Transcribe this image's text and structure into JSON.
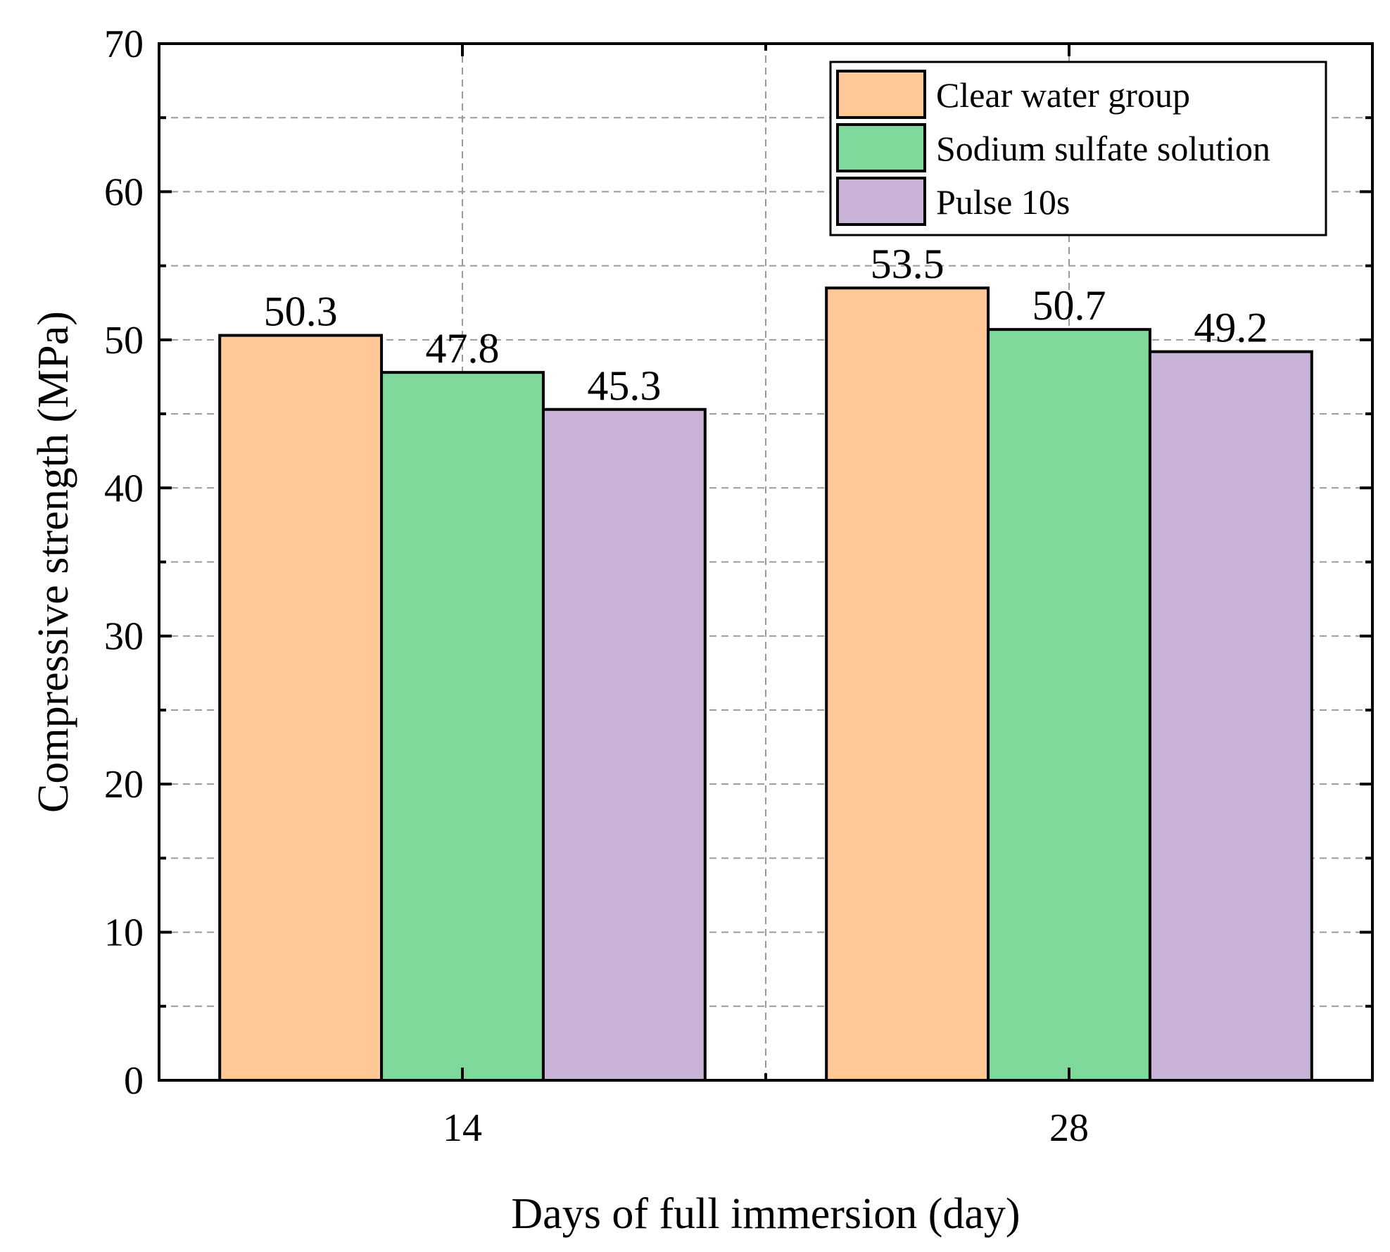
{
  "chart_data": {
    "type": "bar",
    "categories": [
      "14",
      "28"
    ],
    "series": [
      {
        "name": "Clear water group",
        "color": "#FFC896",
        "values": [
          50.3,
          53.5
        ],
        "labels": [
          "50.3",
          "53.5"
        ]
      },
      {
        "name": "Sodium sulfate solution",
        "color": "#7FD99A",
        "values": [
          47.8,
          50.7
        ],
        "labels": [
          "47.8",
          "50.7"
        ]
      },
      {
        "name": "Pulse 10s",
        "color": "#C8B2D6",
        "values": [
          45.3,
          49.2
        ],
        "labels": [
          "45.3",
          "49.2"
        ]
      }
    ],
    "xlabel": "Days of full immersion (day)",
    "ylabel": "Compressive strength (MPa)",
    "ylim": [
      0,
      70
    ],
    "yticks": [
      0,
      10,
      20,
      30,
      40,
      50,
      60,
      70
    ],
    "ytick_labels": [
      "0",
      "10",
      "20",
      "30",
      "40",
      "50",
      "60",
      "70"
    ],
    "grid": true,
    "legend_position": "top-right"
  }
}
